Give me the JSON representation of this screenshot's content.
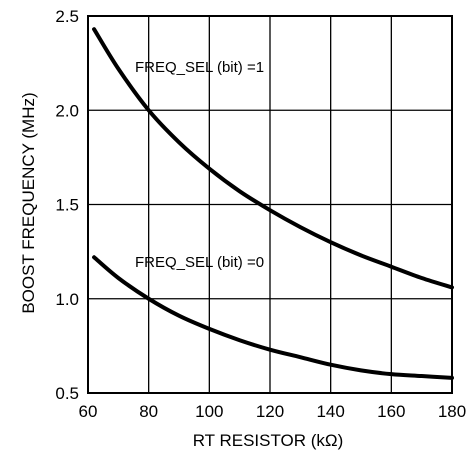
{
  "chart_data": {
    "type": "line",
    "title": "",
    "xlabel": "RT RESISTOR (kΩ)",
    "ylabel": "BOOST FREQUENCY (MHz)",
    "xlim": [
      60,
      180
    ],
    "ylim": [
      0.5,
      2.5
    ],
    "xticks": [
      "60",
      "80",
      "100",
      "120",
      "140",
      "160",
      "180"
    ],
    "yticks": [
      "0.5",
      "1.0",
      "1.5",
      "2.0",
      "2.5"
    ],
    "grid": true,
    "legend": "none",
    "series": [
      {
        "label": "FREQ_SEL (bit) =1",
        "x": [
          62,
          70,
          80,
          90,
          100,
          110,
          120,
          130,
          140,
          150,
          160,
          170,
          180
        ],
        "y": [
          2.43,
          2.22,
          2.0,
          1.83,
          1.69,
          1.57,
          1.47,
          1.38,
          1.3,
          1.23,
          1.17,
          1.11,
          1.06
        ]
      },
      {
        "label": "FREQ_SEL (bit) =0",
        "x": [
          62,
          70,
          80,
          90,
          100,
          110,
          120,
          130,
          140,
          150,
          160,
          170,
          180
        ],
        "y": [
          1.22,
          1.11,
          1.0,
          0.91,
          0.84,
          0.78,
          0.73,
          0.69,
          0.65,
          0.62,
          0.6,
          0.59,
          0.58
        ]
      }
    ],
    "colors": {
      "line": "#000000",
      "grid": "#000000",
      "background": "#ffffff"
    }
  }
}
